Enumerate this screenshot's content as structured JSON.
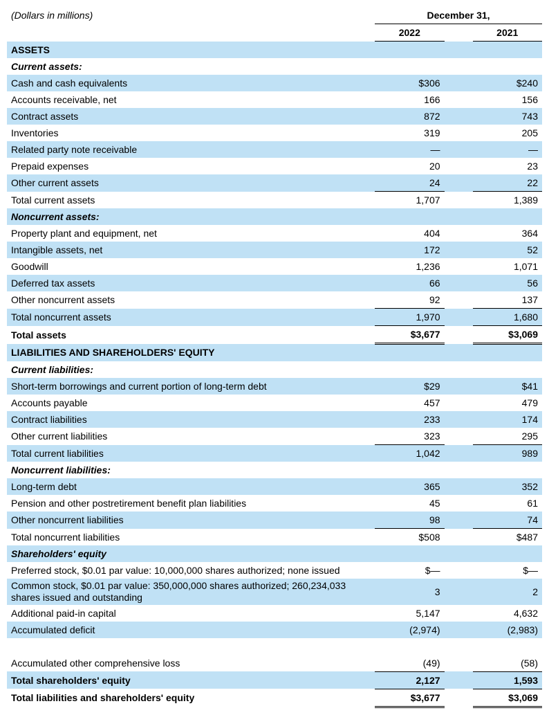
{
  "meta": {
    "caption": "(Dollars in millions)",
    "period_header": "December 31,",
    "col1": "2022",
    "col2": "2021"
  },
  "colors": {
    "shade": "#c0e1f5",
    "text": "#000000",
    "background": "#ffffff",
    "rule": "#000000"
  },
  "typography": {
    "font_family": "Arial, Helvetica, sans-serif",
    "base_size_pt": 10.5
  },
  "rows": [
    {
      "type": "section",
      "label": "ASSETS",
      "shade": true
    },
    {
      "type": "subsection",
      "label": "Current assets:",
      "shade": false
    },
    {
      "type": "data",
      "label": "Cash and cash equivalents",
      "v1": "$306",
      "v2": "$240",
      "shade": true
    },
    {
      "type": "data",
      "label": "Accounts receivable, net",
      "v1": "166",
      "v2": "156",
      "shade": false
    },
    {
      "type": "data",
      "label": "Contract assets",
      "v1": "872",
      "v2": "743",
      "shade": true
    },
    {
      "type": "data",
      "label": "Inventories",
      "v1": "319",
      "v2": "205",
      "shade": false
    },
    {
      "type": "data",
      "label": "Related party note receivable",
      "v1": "—",
      "v2": "—",
      "shade": true
    },
    {
      "type": "data",
      "label": "Prepaid expenses",
      "v1": "20",
      "v2": "23",
      "shade": false
    },
    {
      "type": "data",
      "label": "Other current assets",
      "v1": "24",
      "v2": "22",
      "shade": true,
      "rule_below": true
    },
    {
      "type": "data",
      "label": "Total current assets",
      "v1": "1,707",
      "v2": "1,389",
      "shade": false
    },
    {
      "type": "subsection",
      "label": "Noncurrent assets:",
      "shade": true
    },
    {
      "type": "data",
      "label": "Property plant and equipment, net",
      "v1": "404",
      "v2": "364",
      "shade": false
    },
    {
      "type": "data",
      "label": "Intangible assets, net",
      "v1": "172",
      "v2": "52",
      "shade": true
    },
    {
      "type": "data",
      "label": "Goodwill",
      "v1": "1,236",
      "v2": "1,071",
      "shade": false
    },
    {
      "type": "data",
      "label": "Deferred tax assets",
      "v1": "66",
      "v2": "56",
      "shade": true
    },
    {
      "type": "data",
      "label": "Other noncurrent assets",
      "v1": "92",
      "v2": "137",
      "shade": false,
      "rule_below": true
    },
    {
      "type": "data",
      "label": "Total noncurrent assets",
      "v1": "1,970",
      "v2": "1,680",
      "shade": true,
      "rule_below": true
    },
    {
      "type": "total",
      "label": "Total assets",
      "v1": "$3,677",
      "v2": "$3,069",
      "shade": false,
      "double_below": true,
      "bold": true
    },
    {
      "type": "section",
      "label": "LIABILITIES AND SHAREHOLDERS' EQUITY",
      "shade": true
    },
    {
      "type": "subsection",
      "label": "Current liabilities:",
      "shade": false
    },
    {
      "type": "data",
      "label": "Short-term borrowings and current portion of long-term debt",
      "v1": "$29",
      "v2": "$41",
      "shade": true
    },
    {
      "type": "data",
      "label": "Accounts payable",
      "v1": "457",
      "v2": "479",
      "shade": false
    },
    {
      "type": "data",
      "label": "Contract liabilities",
      "v1": "233",
      "v2": "174",
      "shade": true
    },
    {
      "type": "data",
      "label": "Other current liabilities",
      "v1": "323",
      "v2": "295",
      "shade": false,
      "rule_below": true
    },
    {
      "type": "data",
      "label": "Total current liabilities",
      "v1": "1,042",
      "v2": "989",
      "shade": true
    },
    {
      "type": "subsection",
      "label": "Noncurrent liabilities:",
      "shade": false
    },
    {
      "type": "data",
      "label": "Long-term debt",
      "v1": "365",
      "v2": "352",
      "shade": true
    },
    {
      "type": "data",
      "label": "Pension and other postretirement benefit plan liabilities",
      "v1": "45",
      "v2": "61",
      "shade": false
    },
    {
      "type": "data",
      "label": "Other noncurrent liabilities",
      "v1": "98",
      "v2": "74",
      "shade": true,
      "rule_below": true
    },
    {
      "type": "data",
      "label": "Total noncurrent liabilities",
      "v1": "$508",
      "v2": "$487",
      "shade": false
    },
    {
      "type": "subsection",
      "label": "Shareholders' equity",
      "shade": true
    },
    {
      "type": "data",
      "label": "Preferred stock, $0.01 par value: 10,000,000 shares authorized; none issued",
      "v1": "$—",
      "v2": "$—",
      "shade": false
    },
    {
      "type": "data",
      "label": "Common stock, $0.01 par value: 350,000,000 shares authorized; 260,234,033 shares issued and outstanding",
      "v1": "3",
      "v2": "2",
      "shade": true,
      "twoline": true
    },
    {
      "type": "data",
      "label": "Additional paid-in capital",
      "v1": "5,147",
      "v2": "4,632",
      "shade": false
    },
    {
      "type": "data",
      "label": "Accumulated deficit",
      "v1": "(2,974)",
      "v2": "(2,983)",
      "shade": true
    },
    {
      "type": "spacer",
      "shade": false
    },
    {
      "type": "data",
      "label": "Accumulated other comprehensive loss",
      "v1": "(49)",
      "v2": "(58)",
      "shade": false,
      "rule_below": true
    },
    {
      "type": "total",
      "label": "Total shareholders' equity",
      "v1": "2,127",
      "v2": "1,593",
      "shade": true,
      "bold": true,
      "rule_below": true
    },
    {
      "type": "total",
      "label": "Total liabilities and shareholders' equity",
      "v1": "$3,677",
      "v2": "$3,069",
      "shade": false,
      "bold": true,
      "double_below": true
    }
  ]
}
